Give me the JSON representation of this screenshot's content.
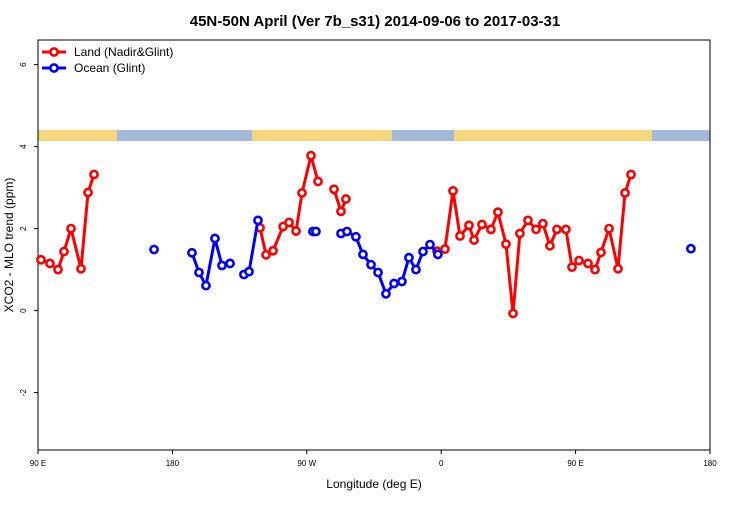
{
  "chart_data": {
    "type": "line",
    "title": "45N-50N April (Ver 7b_s31)   2014-09-06 to 2017-03-31",
    "x_label": "Longitude (deg E)",
    "y_label": "XCO2 - MLO trend (ppm)",
    "xlim": [
      90,
      540
    ],
    "ylim": [
      -3.4,
      6.6
    ],
    "xticks": [
      {
        "value": 90,
        "label": "90 E"
      },
      180,
      {
        "value": 270,
        "label": "90 W"
      },
      {
        "value": 360,
        "label": "0"
      },
      {
        "value": 450,
        "label": "90 E"
      },
      {
        "value": 540,
        "label": "180"
      }
    ],
    "yticks": [
      -2,
      0,
      2,
      4,
      6
    ],
    "legend": "top-left",
    "series": [
      {
        "name": "Land (Nadir&Glint)",
        "color": "#ff0000",
        "x": [
          92.0,
          98.0,
          103.4,
          107.4,
          112.1,
          118.8,
          123.5,
          127.5,
          null,
          238.7,
          242.7,
          247.4,
          254.1,
          258.1,
          262.8,
          266.8,
          272.8,
          277.5,
          null,
          288.2,
          292.9,
          296.2,
          null,
          357.2,
          362.5,
          367.9,
          372.6,
          378.6,
          382.0,
          387.3,
          393.3,
          398.0,
          403.4,
          408.1,
          412.7,
          418.1,
          423.5,
          428.1,
          432.8,
          437.5,
          443.5,
          447.6,
          452.3,
          458.3,
          463.0,
          467.0,
          472.4,
          478.4,
          483.1,
          487.1
        ],
        "values": [
          1.24,
          1.15,
          1.0,
          1.44,
          2.0,
          1.02,
          2.88,
          3.32,
          null,
          2.02,
          1.36,
          1.46,
          2.05,
          2.15,
          1.94,
          2.87,
          3.78,
          3.15,
          null,
          2.96,
          2.42,
          2.72,
          null,
          1.45,
          1.5,
          2.92,
          1.82,
          2.08,
          1.72,
          2.1,
          1.98,
          2.4,
          1.62,
          -0.07,
          1.88,
          2.2,
          1.98,
          2.12,
          1.58,
          1.98,
          1.98,
          1.06,
          1.22,
          1.15,
          1.0,
          1.42,
          2.0,
          1.02,
          2.87,
          3.32
        ]
      },
      {
        "name": "Ocean (Glint)",
        "color": "#0000ff",
        "x": [
          167.7,
          null,
          193.1,
          197.8,
          202.5,
          208.5,
          213.2,
          218.6,
          null,
          227.9,
          231.3,
          237.3,
          null,
          274.1,
          276.1,
          null,
          292.9,
          296.9,
          302.9,
          307.6,
          313.0,
          317.7,
          323.0,
          328.4,
          333.7,
          338.4,
          343.1,
          347.8,
          352.5,
          357.8,
          null,
          527.2
        ],
        "values": [
          1.49,
          null,
          1.41,
          0.93,
          0.61,
          1.76,
          1.1,
          1.15,
          null,
          0.88,
          0.95,
          2.2,
          null,
          1.93,
          1.93,
          null,
          1.88,
          1.93,
          1.8,
          1.37,
          1.12,
          0.93,
          0.41,
          0.66,
          0.71,
          1.29,
          1.0,
          1.44,
          1.61,
          1.37,
          null,
          1.51
        ]
      }
    ]
  }
}
